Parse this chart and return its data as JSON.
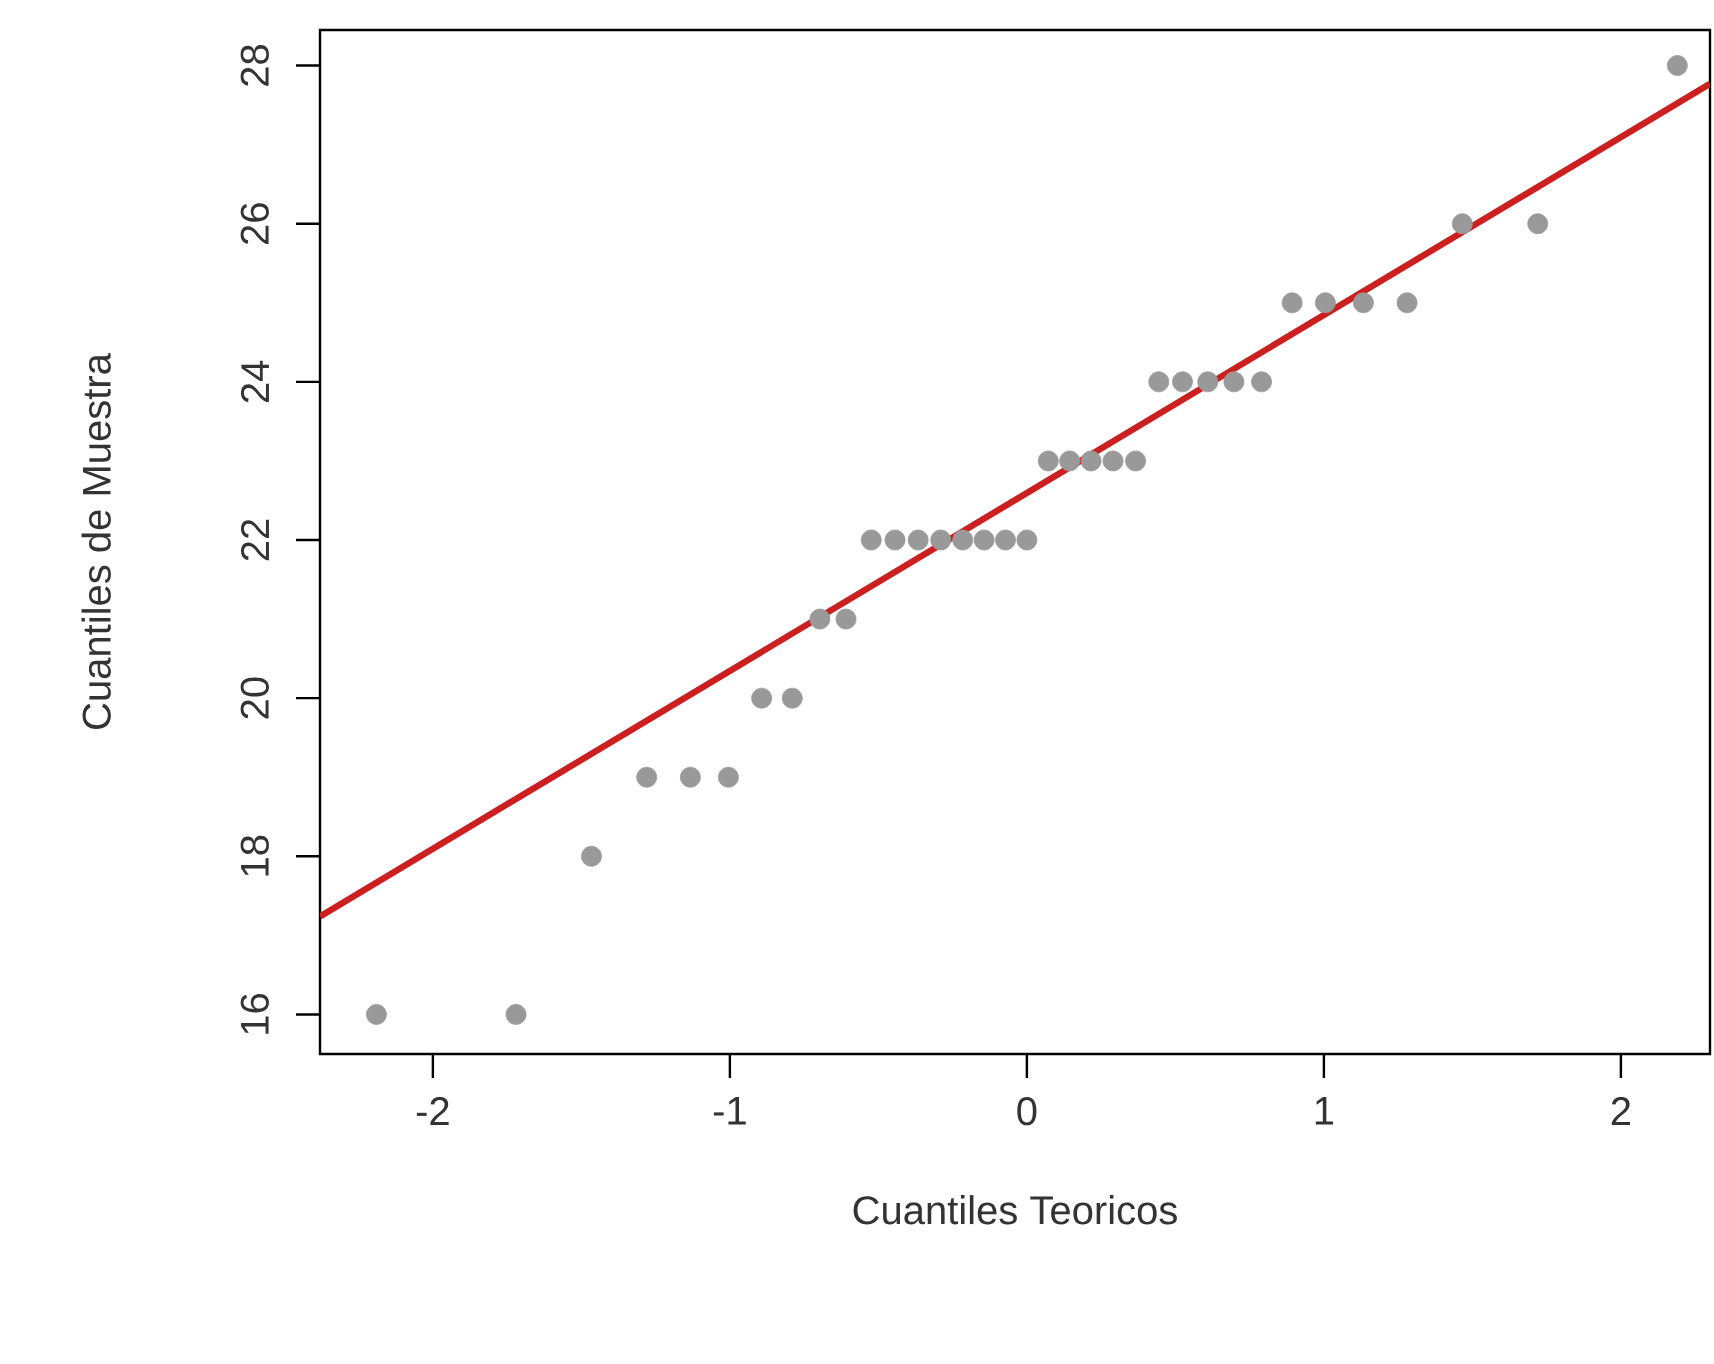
{
  "chart_data": {
    "type": "scatter",
    "xlabel": "Cuantiles Teoricos",
    "ylabel": "Cuantiles de Muestra",
    "xlim": [
      -2.38,
      2.3
    ],
    "ylim": [
      15.5,
      28.45
    ],
    "xticks": [
      -2,
      -1,
      0,
      1,
      2
    ],
    "yticks": [
      16,
      18,
      20,
      22,
      24,
      26,
      28
    ],
    "grid": false,
    "marker": "circle",
    "series": [
      {
        "type": "scatter",
        "color": "#999999",
        "x": [
          -2.19,
          -1.72,
          -1.466,
          -1.28,
          -1.133,
          -1.005,
          -0.893,
          -0.79,
          -0.697,
          -0.609,
          -0.524,
          -0.444,
          -0.366,
          -0.29,
          -0.216,
          -0.144,
          -0.072,
          0,
          0.072,
          0.144,
          0.216,
          0.29,
          0.366,
          0.444,
          0.524,
          0.609,
          0.697,
          0.79,
          0.893,
          1.005,
          1.133,
          1.28,
          1.466,
          1.72,
          2.19
        ],
        "values": [
          16,
          16,
          18,
          19,
          19,
          19,
          20,
          20,
          21,
          21,
          22,
          22,
          22,
          22,
          22,
          22,
          22,
          22,
          23,
          23,
          23,
          23,
          23,
          24,
          24,
          24,
          24,
          24,
          25,
          25,
          25,
          25,
          26,
          26,
          28
        ]
      },
      {
        "type": "line",
        "color": "#cc1f1f",
        "marker": "none",
        "line_style": "solid",
        "x": [
          -2.38,
          2.3
        ],
        "values": [
          17.24,
          27.77
        ]
      }
    ]
  }
}
